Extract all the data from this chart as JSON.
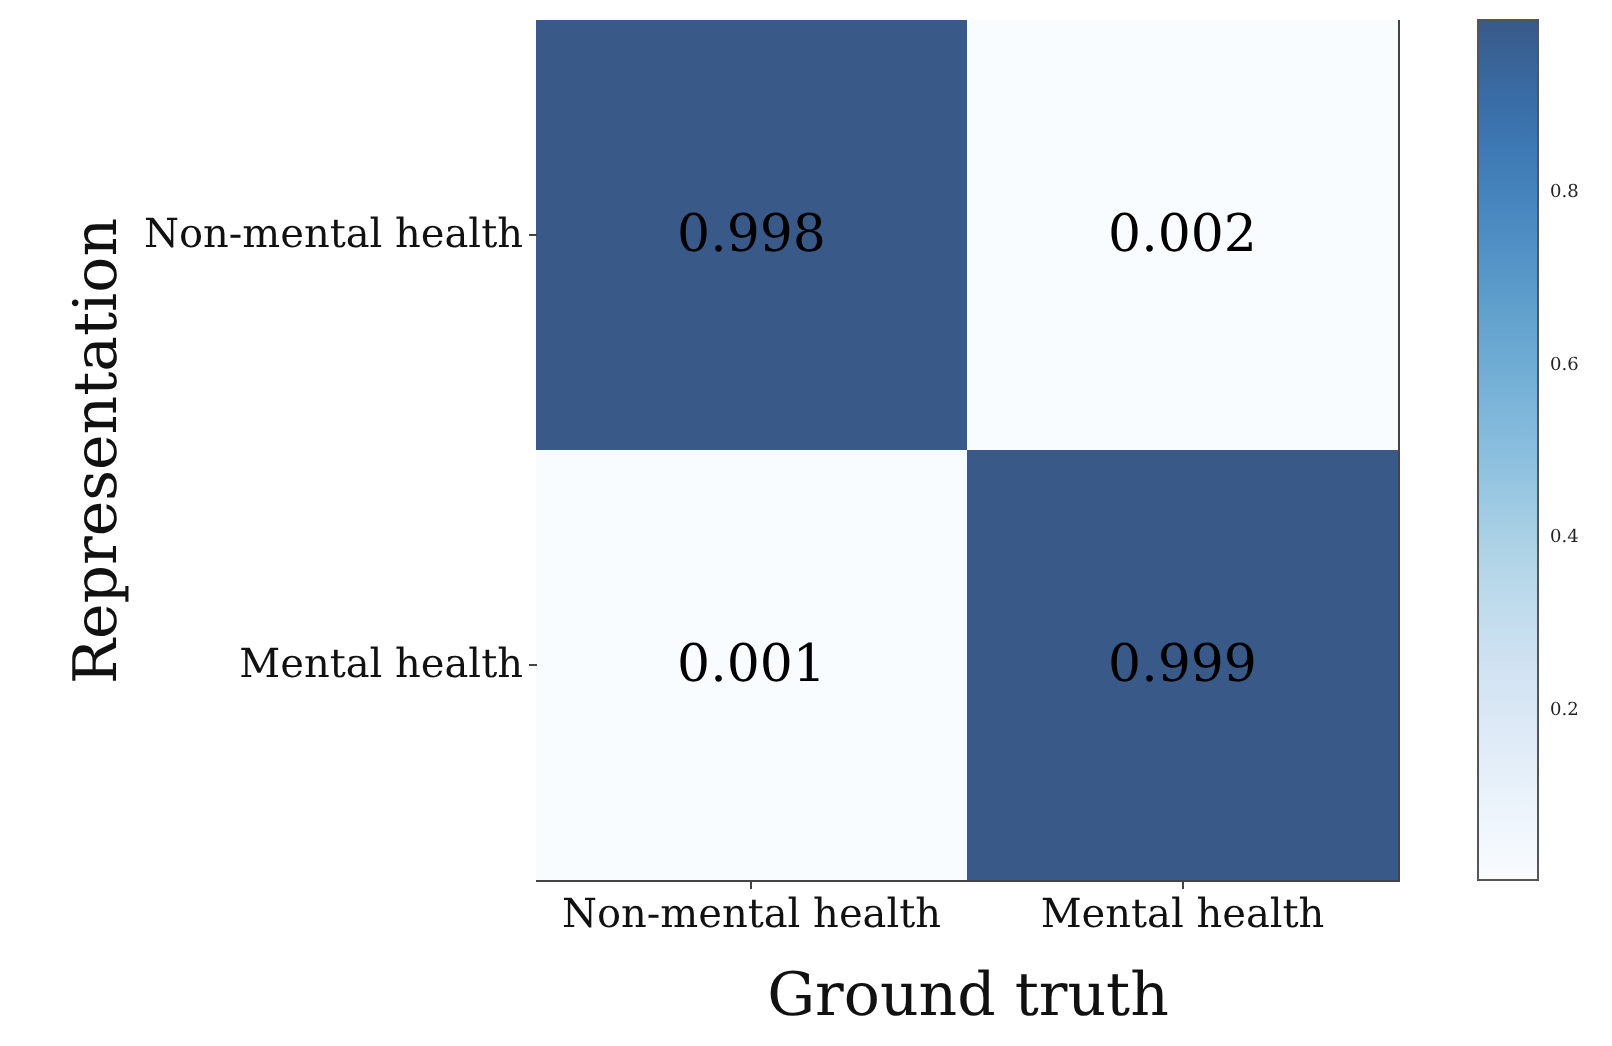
{
  "chart_data": {
    "type": "heatmap",
    "xlabel": "Ground truth",
    "ylabel": "Representation",
    "categories": [
      "Non-mental health",
      "Mental health"
    ],
    "y_categories": [
      "Non-mental health",
      "Mental health"
    ],
    "cells": [
      [
        0.998,
        0.002
      ],
      [
        0.001,
        0.999
      ]
    ],
    "clim": [
      0.001,
      0.999
    ],
    "cticks": [
      0.2,
      0.4,
      0.6,
      0.8
    ],
    "data_labels": true
  }
}
